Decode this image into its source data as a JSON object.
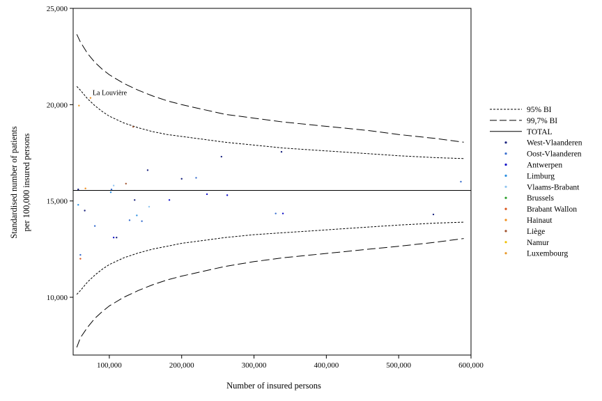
{
  "chart_data": {
    "type": "scatter",
    "title": "",
    "xlabel": "Number of insured persons",
    "ylabel_lines": [
      "Standardised number of patients",
      "per 100,000 insured persons"
    ],
    "xlim": [
      50000,
      600000
    ],
    "ylim": [
      7000,
      25000
    ],
    "xticks": [
      {
        "value": 100000,
        "label": "100,000"
      },
      {
        "value": 200000,
        "label": "200,000"
      },
      {
        "value": 300000,
        "label": "300,000"
      },
      {
        "value": 400000,
        "label": "400,000"
      },
      {
        "value": 500000,
        "label": "500,000"
      },
      {
        "value": 600000,
        "label": "600,000"
      }
    ],
    "yticks": [
      {
        "value": 10000,
        "label": "10,000"
      },
      {
        "value": 15000,
        "label": "15,000"
      },
      {
        "value": 20000,
        "label": "20,000"
      },
      {
        "value": 25000,
        "label": "25,000"
      }
    ],
    "grid": false,
    "legend_position": "right",
    "total": 15550,
    "ci_x": [
      55000,
      60000,
      70000,
      80000,
      90000,
      100000,
      120000,
      140000,
      160000,
      180000,
      200000,
      230000,
      260000,
      300000,
      340000,
      380000,
      420000,
      460000,
      500000,
      550000,
      590000
    ],
    "ci95_upper": [
      20950,
      20750,
      20300,
      19950,
      19650,
      19400,
      19050,
      18800,
      18600,
      18450,
      18350,
      18200,
      18050,
      17900,
      17750,
      17650,
      17550,
      17450,
      17350,
      17250,
      17200
    ],
    "ci95_lower": [
      10150,
      10350,
      10800,
      11150,
      11450,
      11700,
      12050,
      12300,
      12500,
      12650,
      12800,
      12950,
      13100,
      13250,
      13350,
      13450,
      13550,
      13650,
      13750,
      13850,
      13900
    ],
    "ci997_upper": [
      23650,
      23250,
      22650,
      22200,
      21850,
      21550,
      21100,
      20750,
      20450,
      20200,
      20000,
      19750,
      19500,
      19300,
      19100,
      18950,
      18800,
      18650,
      18450,
      18250,
      18050
    ],
    "ci997_lower": [
      7400,
      7900,
      8450,
      8900,
      9250,
      9550,
      10000,
      10350,
      10650,
      10900,
      11100,
      11350,
      11600,
      11850,
      12050,
      12200,
      12350,
      12500,
      12650,
      12850,
      13050
    ],
    "annotation": {
      "text": "La Louvière",
      "x": 74000,
      "y": 20350
    },
    "series": [
      {
        "name": "95% BI",
        "kind": "dashed-short"
      },
      {
        "name": "99,7% BI",
        "kind": "dashed-long"
      },
      {
        "name": "TOTAL",
        "kind": "solid"
      },
      {
        "name": "West-Vlaanderen",
        "color": "#1a237e",
        "points": [
          [
            57000,
            15600
          ],
          [
            66000,
            14500
          ],
          [
            110000,
            13100
          ],
          [
            135000,
            15050
          ],
          [
            153000,
            16600
          ],
          [
            200000,
            16150
          ],
          [
            255000,
            17300
          ],
          [
            338000,
            17550
          ],
          [
            548000,
            14300
          ]
        ]
      },
      {
        "name": "Oost-Vlaanderen",
        "color": "#3a6fcf",
        "points": [
          [
            60000,
            12200
          ],
          [
            80000,
            13700
          ],
          [
            103000,
            15600
          ],
          [
            128000,
            14000
          ],
          [
            145000,
            13950
          ],
          [
            220000,
            16200
          ],
          [
            330000,
            14350
          ],
          [
            586000,
            16000
          ]
        ]
      },
      {
        "name": "Antwerpen",
        "color": "#1010c8",
        "points": [
          [
            106000,
            13100
          ],
          [
            183000,
            15050
          ],
          [
            235000,
            15350
          ],
          [
            263000,
            15300
          ],
          [
            340000,
            14350
          ]
        ]
      },
      {
        "name": "Limburg",
        "color": "#2b8fe0",
        "points": [
          [
            57000,
            14800
          ],
          [
            102000,
            15450
          ],
          [
            138000,
            14250
          ]
        ]
      },
      {
        "name": "Vlaams-Brabant",
        "color": "#8fc4f0",
        "points": [
          [
            106000,
            15800
          ],
          [
            155000,
            14700
          ]
        ]
      },
      {
        "name": "Brussels",
        "color": "#2ca02c",
        "points": []
      },
      {
        "name": "Brabant Wallon",
        "color": "#d9541a",
        "points": [
          [
            60000,
            12000
          ]
        ]
      },
      {
        "name": "Hainaut",
        "color": "#f08c1a",
        "points": [
          [
            74000,
            20350
          ],
          [
            67000,
            15650
          ]
        ]
      },
      {
        "name": "Liège",
        "color": "#a0522d",
        "points": [
          [
            123000,
            15900
          ],
          [
            133000,
            18850
          ]
        ]
      },
      {
        "name": "Namur",
        "color": "#f0c000",
        "points": []
      },
      {
        "name": "Luxembourg",
        "color": "#e89a2c",
        "points": [
          [
            58000,
            19950
          ]
        ]
      }
    ]
  }
}
